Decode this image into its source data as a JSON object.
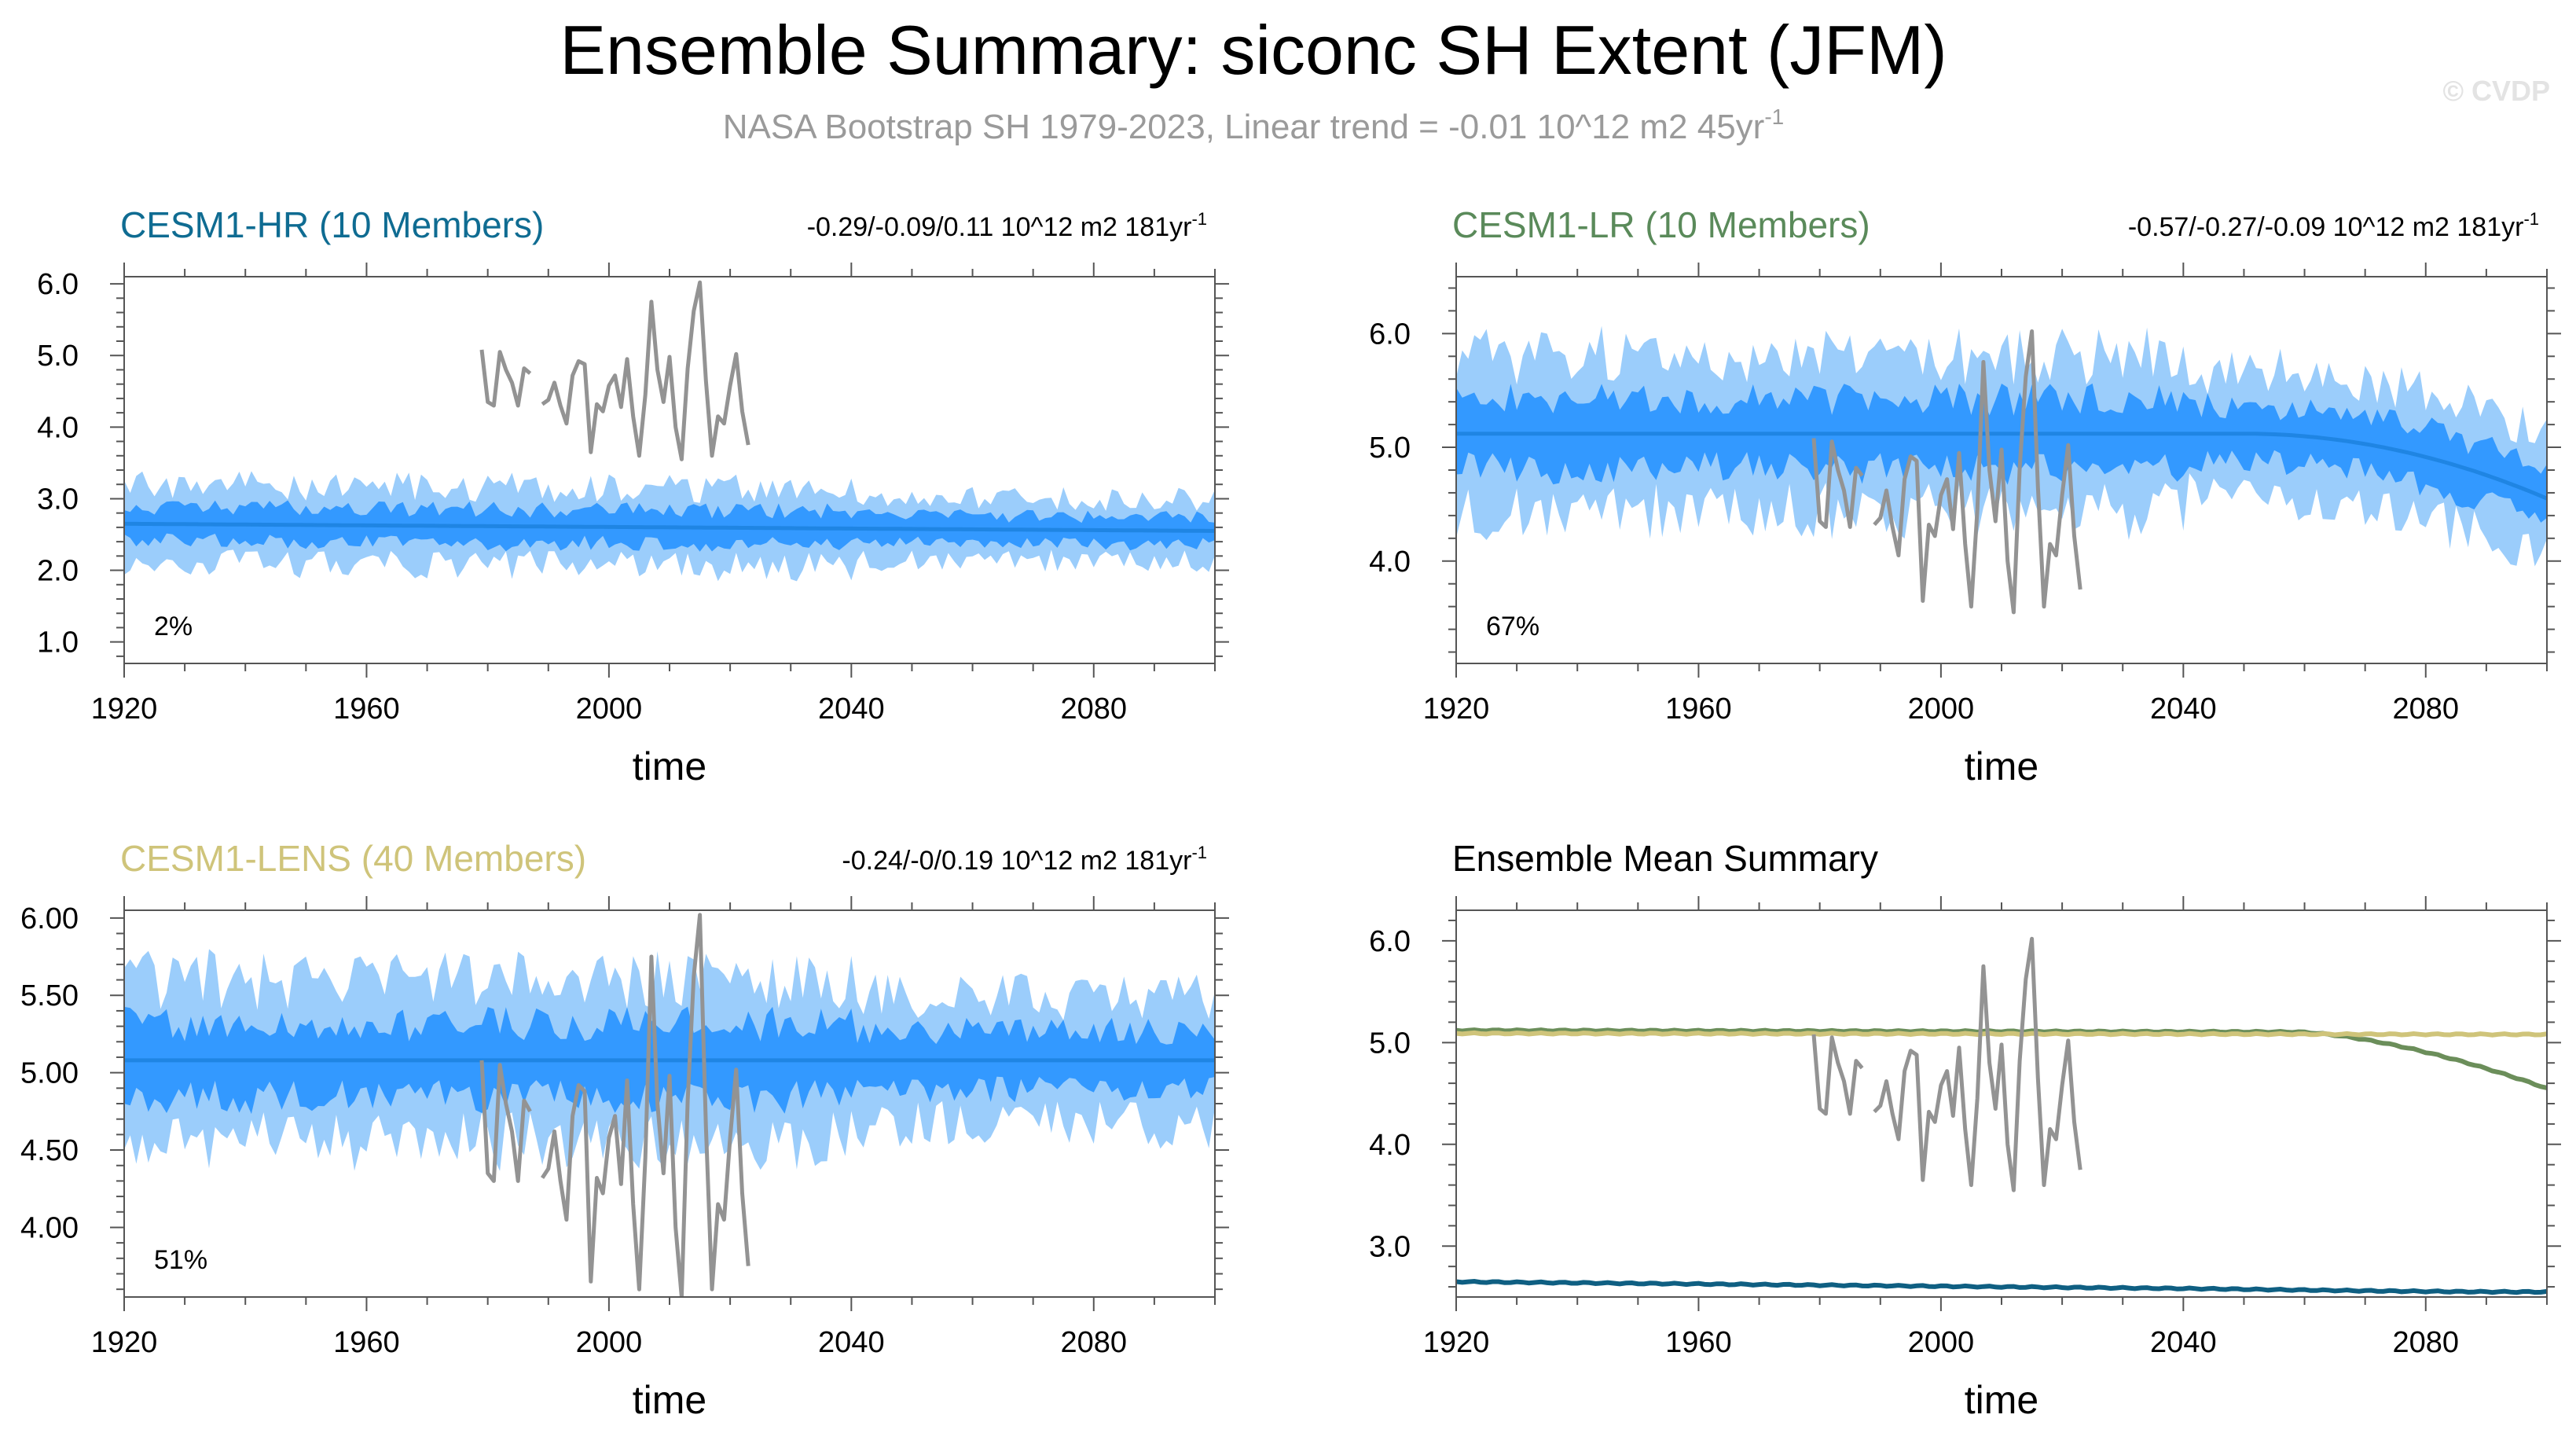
{
  "page": {
    "title": "Ensemble Summary: siconc SH Extent (JFM)",
    "subtitle": "NASA Bootstrap SH 1979-2023, Linear trend = -0.01 10^12 m2 45yr",
    "subtitle_superscript": "-1",
    "watermark": "© CVDP"
  },
  "colors": {
    "band_outer": "#9bcdfb",
    "band_inner": "#3399ff",
    "mean_line": "#1f85e3",
    "obs_line": "#939393",
    "hr_title": "#0f6c92",
    "lr_title": "#5a8a5a",
    "lens_title": "#cfc47a",
    "axis": "#555555",
    "text": "#000000",
    "subtitle": "#9a9a9a",
    "watermark": "#e3e3e3"
  },
  "chart_data": [
    {
      "id": "hr",
      "type": "area",
      "title": "CESM1-HR (10 Members)",
      "trend_label": "-0.29/-0.09/0.11 10^12 m2 181yr",
      "trend_superscript": "-1",
      "percent_label": "2%",
      "xlabel": "time",
      "xlim": [
        1920,
        2100
      ],
      "xticks": [
        1920,
        1960,
        2000,
        2040,
        2080
      ],
      "ylim": [
        0.7,
        6.1
      ],
      "yticks": [
        1.0,
        2.0,
        3.0,
        4.0,
        5.0,
        6.0
      ],
      "ytick_labels": [
        "1.0",
        "2.0",
        "3.0",
        "4.0",
        "5.0",
        "6.0"
      ],
      "mean_start": 2.65,
      "mean_end": 2.55,
      "inner_amp": 0.35,
      "outer_amp": 0.75,
      "noise_seed": 11,
      "obs_offset": 2.0
    },
    {
      "id": "lr",
      "type": "area",
      "title": "CESM1-LR (10 Members)",
      "trend_label": "-0.57/-0.27/-0.09 10^12 m2 181yr",
      "trend_superscript": "-1",
      "percent_label": "67%",
      "xlabel": "time",
      "xlim": [
        1920,
        2100
      ],
      "xticks": [
        1920,
        1960,
        2000,
        2040,
        2080
      ],
      "ylim": [
        3.1,
        6.5
      ],
      "yticks": [
        4.0,
        5.0,
        6.0
      ],
      "ytick_labels": [
        "4.0",
        "5.0",
        "6.0"
      ],
      "mean_start": 5.12,
      "mean_end": 5.12,
      "decline_from": 2050,
      "mean_final": 4.55,
      "inner_amp": 0.45,
      "outer_amp": 0.95,
      "noise_seed": 23,
      "obs_offset": 0.0
    },
    {
      "id": "lens",
      "type": "area",
      "title": "CESM1-LENS (40 Members)",
      "trend_label": "-0.24/-0/0.19 10^12 m2 181yr",
      "trend_superscript": "-1",
      "percent_label": "51%",
      "xlabel": "time",
      "xlim": [
        1920,
        2100
      ],
      "xticks": [
        1920,
        1960,
        2000,
        2040,
        2080
      ],
      "ylim": [
        3.55,
        6.05
      ],
      "yticks": [
        4.0,
        4.5,
        5.0,
        5.5,
        6.0
      ],
      "ytick_labels": [
        "4.00",
        "4.50",
        "5.00",
        "5.50",
        "6.00"
      ],
      "mean_start": 5.08,
      "mean_end": 5.08,
      "inner_amp": 0.35,
      "outer_amp": 0.72,
      "noise_seed": 37,
      "obs_offset": 0.0
    },
    {
      "id": "summary",
      "type": "line",
      "title": "Ensemble Mean Summary",
      "xlabel": "time",
      "xlim": [
        1920,
        2100
      ],
      "xticks": [
        1920,
        1960,
        2000,
        2040,
        2080
      ],
      "ylim": [
        2.5,
        6.3
      ],
      "yticks": [
        3.0,
        4.0,
        5.0,
        6.0
      ],
      "ytick_labels": [
        "3.0",
        "4.0",
        "5.0",
        "6.0"
      ],
      "series": [
        {
          "name": "CESM1-HR",
          "color": "#0f5f82",
          "start": 2.65,
          "end": 2.55,
          "decline_from": 2040,
          "final": 2.55
        },
        {
          "name": "CESM1-LR",
          "color": "#6b8e5a",
          "start": 5.12,
          "end": 5.1,
          "decline_from": 2058,
          "final": 4.55
        },
        {
          "name": "CESM1-LENS",
          "color": "#cfc47a",
          "start": 5.09,
          "end": 5.08,
          "decline_from": 2100,
          "final": 5.08
        }
      ],
      "obs_offset": 0.0
    }
  ],
  "observations": {
    "name": "NASA Bootstrap SH",
    "years": [
      1979,
      1980,
      1981,
      1982,
      1983,
      1984,
      1985,
      1986,
      1987,
      1988,
      1989,
      1990,
      1991,
      1992,
      1993,
      1994,
      1995,
      1996,
      1997,
      1998,
      1999,
      2000,
      2001,
      2002,
      2003,
      2004,
      2005,
      2006,
      2007,
      2008,
      2009,
      2010,
      2011,
      2012,
      2013,
      2014,
      2015,
      2016,
      2017,
      2018,
      2019,
      2020,
      2021,
      2022,
      2023
    ],
    "values": [
      5.08,
      4.35,
      4.3,
      5.05,
      4.8,
      4.62,
      4.3,
      4.82,
      4.75,
      null,
      4.32,
      4.38,
      4.62,
      4.3,
      4.05,
      4.72,
      4.92,
      4.88,
      3.65,
      4.32,
      4.22,
      4.58,
      4.72,
      4.28,
      4.95,
      4.15,
      3.6,
      4.45,
      5.75,
      4.8,
      4.35,
      4.98,
      4.0,
      3.55,
      4.82,
      5.62,
      6.02,
      4.65,
      3.6,
      4.15,
      4.05,
      4.58,
      5.02,
      4.22,
      3.75
    ]
  }
}
